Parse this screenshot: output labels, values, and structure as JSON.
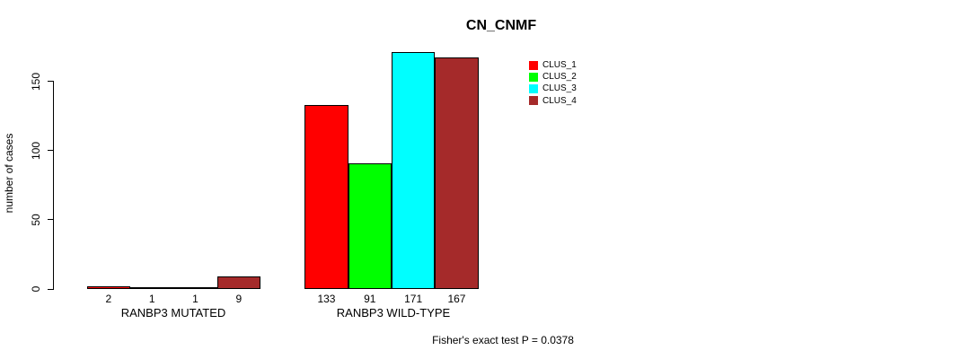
{
  "colors": {
    "background": "#FFFFFF",
    "text": "#000000",
    "axis": "#000000"
  },
  "chart_data": {
    "type": "bar",
    "title": "CN_CNMF",
    "xlabel": "",
    "ylabel": "number of cases",
    "categories": [
      "RANBP3 MUTATED",
      "RANBP3 WILD-TYPE"
    ],
    "series": [
      {
        "name": "CLUS_1",
        "color": "#FF0000",
        "values": [
          2,
          133
        ]
      },
      {
        "name": "CLUS_2",
        "color": "#00FF00",
        "values": [
          1,
          91
        ]
      },
      {
        "name": "CLUS_3",
        "color": "#00FFFF",
        "values": [
          1,
          171
        ]
      },
      {
        "name": "CLUS_4",
        "color": "#A52A2A",
        "values": [
          9,
          167
        ]
      }
    ],
    "bar_labels": [
      [
        2,
        1,
        1,
        9
      ],
      [
        133,
        91,
        171,
        167
      ]
    ],
    "yticks": [
      0,
      50,
      100,
      150
    ],
    "ylim": [
      0,
      171
    ],
    "grid": false,
    "legend_position": "top-right",
    "annotation": "Fisher's exact test P = 0.0378"
  }
}
